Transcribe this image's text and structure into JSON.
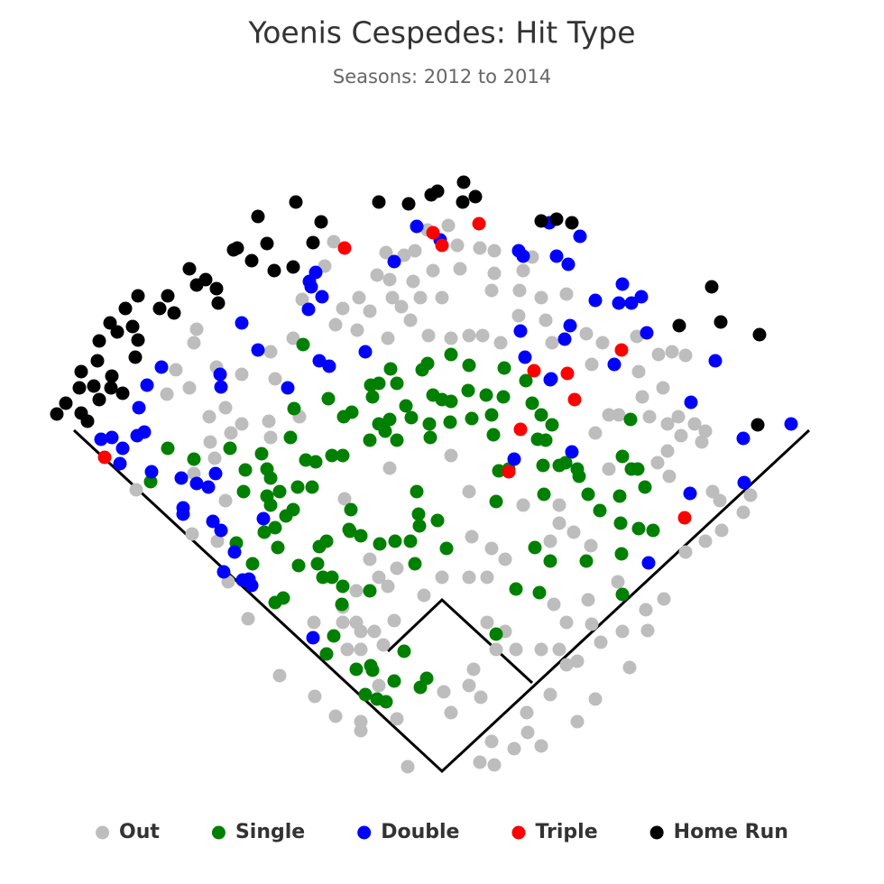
{
  "chart_data": {
    "type": "scatter",
    "title": "Yoenis Cespedes: Hit Type",
    "subtitle": "Seasons: 2012 to 2014",
    "xlim": [
      -490,
      490
    ],
    "ylim": [
      -125,
      855
    ],
    "legend": "bottom",
    "series": [
      {
        "name": "Out",
        "color": "#bdbdbd",
        "x": [
          -120,
          -62,
          -42,
          -30,
          -16,
          7,
          17,
          42,
          58,
          -10,
          20,
          58,
          55,
          86,
          90,
          110,
          138,
          100,
          -92,
          -110,
          -80,
          -55,
          -45,
          -24,
          0,
          -32,
          -58,
          -72,
          -130,
          -155,
          -118,
          -94,
          -60,
          -35,
          -15,
          10,
          30,
          45,
          65,
          85,
          115,
          122,
          160,
          178,
          216,
          240,
          255,
          270,
          218,
          222,
          245,
          230,
          250,
          265,
          280,
          292,
          288,
          250,
          239,
          170,
          185,
          166,
          -165,
          -190,
          -185,
          -222,
          -250,
          -275,
          -272,
          -305,
          -295,
          -280,
          -258,
          -240,
          -222,
          -257,
          -234,
          -192,
          -158,
          -190,
          -275,
          -252,
          -240,
          -277,
          -249,
          -339,
          -237,
          -215,
          -180,
          -141,
          -118,
          -90,
          -50,
          -38,
          2,
          30,
          43,
          35,
          60,
          82,
          70,
          50,
          110,
          130,
          138,
          150,
          166,
          176,
          200,
          208,
          228,
          246,
          270,
          292,
          310,
          308,
          334,
          342,
          300,
          95,
          80,
          58,
          42,
          110,
          94,
          30,
          50,
          70,
          55,
          33,
          0,
          -20,
          -50,
          -80,
          -70,
          -60,
          -95,
          -95,
          -110,
          -90,
          -75,
          -105,
          -90,
          -65,
          -53,
          -110,
          -142,
          30,
          10,
          -58,
          -108,
          130,
          146,
          195,
          226,
          252,
          262,
          196,
          185,
          120,
          165,
          162,
          124,
          138,
          120,
          150,
          170,
          -90,
          -70,
          10,
          55,
          130,
          90
        ],
        "y": [
          587,
          575,
          572,
          577,
          600,
          605,
          583,
          580,
          577,
          555,
          557,
          552,
          533,
          533,
          555,
          525,
          529,
          570,
          525,
          513,
          510,
          525,
          515,
          525,
          525,
          543,
          545,
          550,
          560,
          523,
          495,
          489,
          480,
          500,
          483,
          480,
          483,
          483,
          475,
          505,
          500,
          475,
          485,
          475,
          482,
          462,
          465,
          461,
          443,
          415,
          425,
          393,
          385,
          372,
          385,
          377,
          365,
          355,
          342,
          375,
          395,
          451,
          480,
          465,
          435,
          440,
          448,
          475,
          490,
          418,
          445,
          425,
          393,
          403,
          385,
          365,
          375,
          388,
          393,
          370,
          330,
          347,
          300,
          263,
          255,
          312,
          210,
          169,
          106,
          83,
          61,
          45,
          58,
          5,
          88,
          95,
          82,
          113,
          135,
          135,
          155,
          165,
          135,
          135,
          118,
          122,
          163,
          143,
          155,
          115,
          156,
          191,
          243,
          255,
          267,
          300,
          287,
          306,
          310,
          43,
          25,
          7,
          10,
          28,
          65,
          215,
          215,
          235,
          247,
          260,
          215,
          195,
          225,
          235,
          215,
          205,
          200,
          165,
          165,
          135,
          155,
          135,
          155,
          140,
          167,
          182,
          165,
          310,
          350,
          336,
          302,
          295,
          265,
          210,
          179,
          327,
          393,
          395,
          335,
          255,
          250,
          190,
          185,
          165,
          85,
          55,
          80,
          55,
          95,
          65,
          33,
          275,
          295
        ]
      },
      {
        "name": "Single",
        "color": "#008000",
        "x": [
          -304,
          -275,
          -323,
          -235,
          -228,
          -220,
          -210,
          -218,
          -200,
          -194,
          -190,
          -194,
          -190,
          -180,
          -185,
          -182,
          -197,
          -173,
          -165,
          -160,
          -144,
          -151,
          -140,
          -168,
          -164,
          -154,
          -126,
          -122,
          -110,
          -101,
          -103,
          -109,
          -100,
          -79,
          -77,
          -57,
          -70,
          -50,
          -40,
          -58,
          -63,
          -50,
          -80,
          -70,
          -34,
          -22,
          -16,
          -10,
          0,
          10,
          10,
          29,
          33,
          9,
          -14,
          -13,
          49,
          55,
          68,
          69,
          30,
          57,
          93,
          100,
          110,
          122,
          115,
          106,
          112,
          74,
          63,
          60,
          113,
          130,
          137,
          150,
          152,
          162,
          175,
          197,
          198,
          210,
          200,
          209,
          217,
          225,
          234,
          218,
          160,
          199,
          200,
          108,
          82,
          103,
          120,
          60,
          -28,
          -26,
          -25,
          -35,
          -5,
          5,
          -30,
          -52,
          -69,
          -102,
          -90,
          -136,
          -138,
          -132,
          -122,
          -110,
          -111,
          -80,
          -128,
          -185,
          -176,
          -128,
          -120,
          -95,
          -79,
          -77,
          -85,
          -62,
          -72,
          -42,
          -24,
          -17,
          -53,
          -159
        ],
        "y": [
          358,
          346,
          321,
          358,
          253,
          310,
          230,
          334,
          352,
          335,
          325,
          305,
          295,
          310,
          270,
          248,
          265,
          283,
          290,
          315,
          315,
          345,
          343,
          370,
          402,
          473,
          413,
          350,
          350,
          290,
          268,
          393,
          398,
          428,
          415,
          446,
          430,
          430,
          405,
          390,
          377,
          367,
          367,
          385,
          392,
          445,
          452,
          417,
          412,
          462,
          410,
          422,
          391,
          387,
          385,
          370,
          417,
          395,
          415,
          447,
          450,
          373,
          433,
          408,
          395,
          384,
          367,
          368,
          339,
          335,
          333,
          299,
          307,
          339,
          342,
          335,
          327,
          307,
          289,
          305,
          275,
          335,
          349,
          390,
          335,
          315,
          267,
          269,
          233,
          241,
          196,
          198,
          202,
          248,
          233,
          152,
          310,
          285,
          272,
          255,
          278,
          247,
          230,
          255,
          252,
          266,
          261,
          249,
          230,
          215,
          215,
          205,
          185,
          200,
          255,
          187,
          192,
          130,
          150,
          113,
          117,
          112,
          85,
          77,
          80,
          133,
          93,
          103,
          100,
          228
        ]
      },
      {
        "name": "Double",
        "color": "#0000ff",
        "x": [
          -378,
          -366,
          -357,
          -354,
          -338,
          -330,
          -336,
          -327,
          -311,
          -322,
          -289,
          -272,
          -287,
          -287,
          -259,
          -251,
          -254,
          -245,
          -230,
          -242,
          -221,
          -214,
          -211,
          -246,
          -245,
          -222,
          -204,
          -171,
          -147,
          -145,
          -140,
          -133,
          -148,
          -136,
          -125,
          -85,
          -53,
          -28,
          -2,
          85,
          90,
          119,
          127,
          140,
          153,
          92,
          87,
          120,
          136,
          142,
          170,
          200,
          196,
          221,
          210,
          191,
          227,
          303,
          276,
          387,
          334,
          335,
          275,
          229,
          144,
          80,
          -198,
          -143,
          121
        ],
        "y": [
          368,
          370,
          341,
          358,
          372,
          376,
          403,
          428,
          448,
          332,
          325,
          319,
          292,
          285,
          315,
          330,
          277,
          267,
          243,
          221,
          212,
          213,
          206,
          440,
          426,
          497,
          467,
          425,
          543,
          537,
          553,
          526,
          512,
          455,
          449,
          465,
          565,
          604,
          589,
          577,
          571,
          608,
          571,
          562,
          593,
          459,
          488,
          434,
          479,
          494,
          522,
          540,
          519,
          526,
          519,
          451,
          486,
          455,
          409,
          385,
          369,
          320,
          308,
          231,
          354,
          346,
          280,
          148,
          435
        ]
      },
      {
        "name": "Triple",
        "color": "#ff0000",
        "x": [
          -374,
          -108,
          -10,
          0,
          41,
          102,
          139,
          147,
          199,
          87,
          74,
          269
        ],
        "y": [
          348,
          580,
          597,
          583,
          607,
          444,
          441,
          412,
          467,
          379,
          332,
          281
        ]
      },
      {
        "name": "Home Run",
        "color": "#000000",
        "x": [
          -427,
          -417,
          -400,
          -393,
          -402,
          -386,
          -380,
          -367,
          -354,
          -400,
          -382,
          -366,
          -380,
          -368,
          -360,
          -343,
          -337,
          -351,
          -337,
          -340,
          -304,
          -313,
          -297,
          -280,
          -262,
          -272,
          -248,
          -250,
          -231,
          -211,
          -227,
          -194,
          -204,
          -186,
          -165,
          -162,
          -134,
          -143,
          -70,
          -37,
          -12,
          -5,
          24,
          23,
          37,
          110,
          127,
          144,
          299,
          263,
          309,
          352,
          350
        ],
        "y": [
          396,
          408,
          397,
          388,
          425,
          427,
          412,
          425,
          419,
          443,
          455,
          438,
          477,
          497,
          487,
          493,
          478,
          513,
          527,
          459,
          527,
          513,
          508,
          557,
          545,
          539,
          519,
          535,
          578,
          566,
          580,
          585,
          615,
          555,
          559,
          631,
          609,
          586,
          631,
          629,
          639,
          643,
          653,
          631,
          637,
          610,
          612,
          608,
          537,
          494,
          498,
          484,
          384
        ]
      }
    ]
  }
}
